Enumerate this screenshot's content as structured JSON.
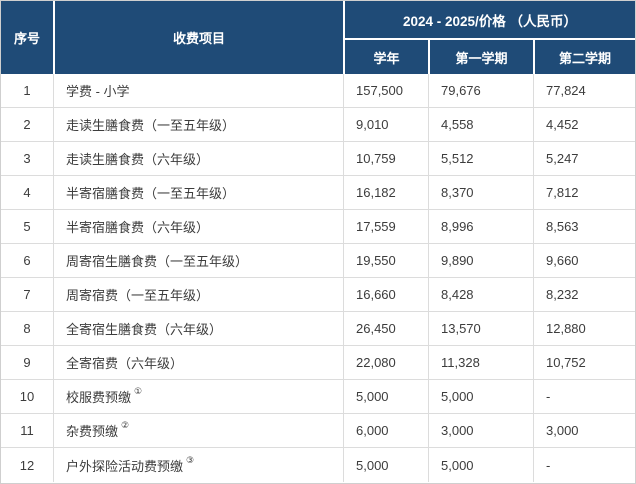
{
  "table": {
    "colors": {
      "header_bg": "#1F4B77",
      "header_text": "#FFFFFF",
      "grid_border": "#DCDCDC",
      "outer_border": "#CFCFCF",
      "body_text": "#3C3C3C",
      "row_bg": "#FFFFFF"
    },
    "header": {
      "col_index": "序号",
      "col_item": "收费项目",
      "col_group": "2024 - 2025/价格 （人民币）",
      "col_year": "学年",
      "col_sem1": "第一学期",
      "col_sem2": "第二学期"
    },
    "rows": [
      {
        "index": "1",
        "item": "学费 - 小学",
        "mark": "",
        "year": "157,500",
        "sem1": "79,676",
        "sem2": "77,824"
      },
      {
        "index": "2",
        "item": "走读生膳食费（一至五年级）",
        "mark": "",
        "year": "9,010",
        "sem1": "4,558",
        "sem2": "4,452"
      },
      {
        "index": "3",
        "item": "走读生膳食费（六年级）",
        "mark": "",
        "year": "10,759",
        "sem1": "5,512",
        "sem2": "5,247"
      },
      {
        "index": "4",
        "item": "半寄宿膳食费（一至五年级）",
        "mark": "",
        "year": "16,182",
        "sem1": "8,370",
        "sem2": "7,812"
      },
      {
        "index": "5",
        "item": "半寄宿膳食费（六年级）",
        "mark": "",
        "year": "17,559",
        "sem1": "8,996",
        "sem2": "8,563"
      },
      {
        "index": "6",
        "item": "周寄宿生膳食费（一至五年级）",
        "mark": "",
        "year": "19,550",
        "sem1": "9,890",
        "sem2": "9,660"
      },
      {
        "index": "7",
        "item": "周寄宿费（一至五年级）",
        "mark": "",
        "year": "16,660",
        "sem1": "8,428",
        "sem2": "8,232"
      },
      {
        "index": "8",
        "item": "全寄宿生膳食费（六年级）",
        "mark": "",
        "year": "26,450",
        "sem1": "13,570",
        "sem2": "12,880"
      },
      {
        "index": "9",
        "item": "全寄宿费（六年级）",
        "mark": "",
        "year": "22,080",
        "sem1": "11,328",
        "sem2": "10,752"
      },
      {
        "index": "10",
        "item": "校服费预缴",
        "mark": "①",
        "year": "5,000",
        "sem1": "5,000",
        "sem2": "-"
      },
      {
        "index": "11",
        "item": "杂费预缴",
        "mark": "②",
        "year": "6,000",
        "sem1": "3,000",
        "sem2": "3,000"
      },
      {
        "index": "12",
        "item": "户外探险活动费预缴",
        "mark": "③",
        "year": "5,000",
        "sem1": "5,000",
        "sem2": "-"
      }
    ]
  }
}
